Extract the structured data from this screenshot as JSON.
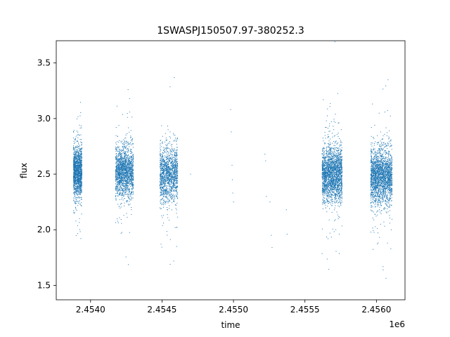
{
  "chart_data": {
    "type": "scatter",
    "title": "1SWASPJ150507.97-380252.3",
    "xlabel": "time",
    "ylabel": "flux",
    "x_offset_label": "1e6",
    "xlim": [
      2453760,
      2456200
    ],
    "ylim": [
      1.37,
      3.7
    ],
    "x_ticks": [
      2453750,
      2454000,
      2454500,
      2455000,
      2455500,
      2456000
    ],
    "x_tick_labels": [
      "2.4540",
      "2.4545",
      "2.4550",
      "2.4555",
      "2.4560"
    ],
    "x_tick_values": [
      2454000,
      2454500,
      2455000,
      2455500,
      2456000
    ],
    "y_tick_values": [
      1.5,
      2.0,
      2.5,
      3.0,
      3.5
    ],
    "y_tick_labels": [
      "1.5",
      "2.0",
      "2.5",
      "3.0",
      "3.5"
    ],
    "grid": false,
    "marker_color": "#1f77b4",
    "series": [
      {
        "clusters": [
          {
            "x_start": 2453880,
            "x_end": 2453940,
            "center": 2.52,
            "spread": 0.2,
            "n": 1500
          },
          {
            "x_start": 2454175,
            "x_end": 2454300,
            "center": 2.52,
            "spread": 0.2,
            "n": 1700
          },
          {
            "x_start": 2454485,
            "x_end": 2454610,
            "center": 2.5,
            "spread": 0.22,
            "n": 1400
          },
          {
            "x_start": 2455620,
            "x_end": 2455760,
            "center": 2.5,
            "spread": 0.22,
            "n": 2200
          },
          {
            "x_start": 2455960,
            "x_end": 2456110,
            "center": 2.48,
            "spread": 0.22,
            "n": 2200
          }
        ],
        "sparse_points": [
          {
            "x": 2454980,
            "y": 3.08
          },
          {
            "x": 2454985,
            "y": 2.88
          },
          {
            "x": 2454990,
            "y": 2.58
          },
          {
            "x": 2454992,
            "y": 2.45
          },
          {
            "x": 2454995,
            "y": 2.33
          },
          {
            "x": 2455000,
            "y": 2.25
          },
          {
            "x": 2455220,
            "y": 2.68
          },
          {
            "x": 2455225,
            "y": 2.62
          },
          {
            "x": 2455230,
            "y": 2.3
          },
          {
            "x": 2455255,
            "y": 2.25
          },
          {
            "x": 2455265,
            "y": 1.95
          },
          {
            "x": 2455270,
            "y": 1.84
          },
          {
            "x": 2455370,
            "y": 2.18
          },
          {
            "x": 2455375,
            "y": 1.96
          },
          {
            "x": 2454700,
            "y": 2.5
          }
        ]
      }
    ]
  }
}
